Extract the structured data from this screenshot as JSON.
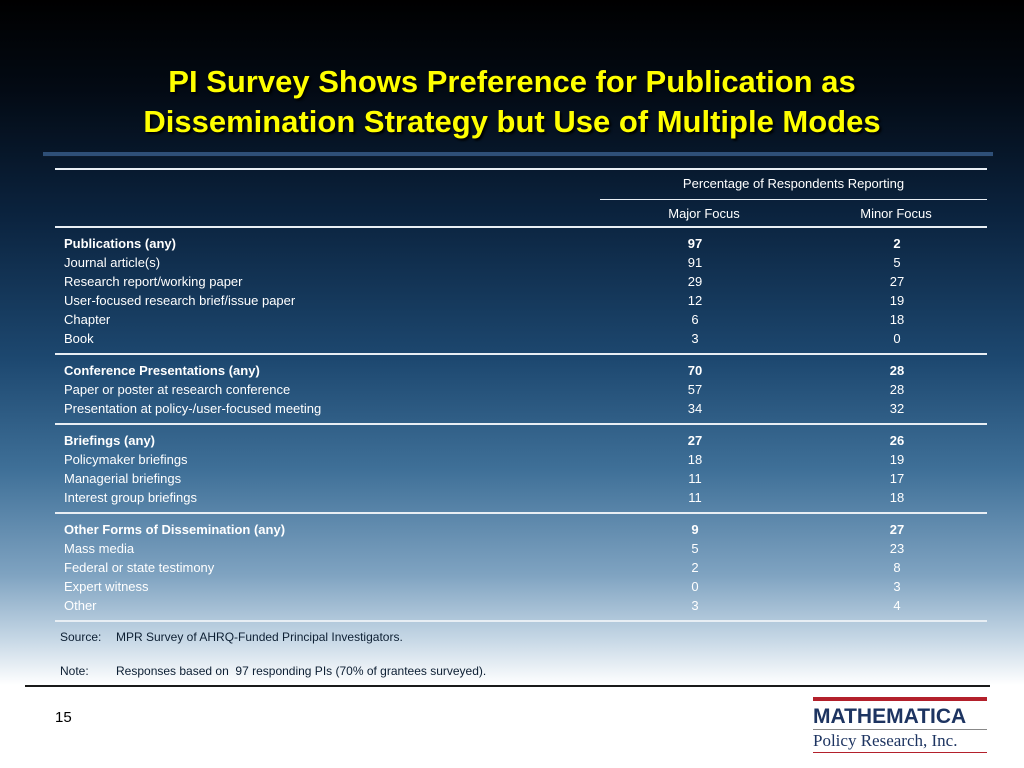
{
  "slide": {
    "title_line1": "PI Survey Shows Preference for Publication as",
    "title_line2": "Dissemination Strategy but Use of Multiple Modes",
    "page_number": "15"
  },
  "table": {
    "spanning_header": "Percentage of Respondents Reporting",
    "col_major": "Major Focus",
    "col_minor": "Minor Focus",
    "groups": [
      {
        "rows": [
          {
            "label": "Publications (any)",
            "major": "97",
            "minor": "2"
          },
          {
            "label": "Journal article(s)",
            "major": "91",
            "minor": "5"
          },
          {
            "label": "Research report/working paper",
            "major": "29",
            "minor": "27"
          },
          {
            "label": "User-focused research brief/issue paper",
            "major": "12",
            "minor": "19"
          },
          {
            "label": "Chapter",
            "major": "6",
            "minor": "18"
          },
          {
            "label": "Book",
            "major": "3",
            "minor": "0"
          }
        ]
      },
      {
        "rows": [
          {
            "label": "Conference Presentations (any)",
            "major": "70",
            "minor": "28"
          },
          {
            "label": "Paper or poster at research conference",
            "major": "57",
            "minor": "28"
          },
          {
            "label": "Presentation at policy-/user-focused meeting",
            "major": "34",
            "minor": "32"
          }
        ]
      },
      {
        "rows": [
          {
            "label": "Briefings (any)",
            "major": "27",
            "minor": "26"
          },
          {
            "label": "Policymaker briefings",
            "major": "18",
            "minor": "19"
          },
          {
            "label": "Managerial briefings",
            "major": "11",
            "minor": "17"
          },
          {
            "label": "Interest group briefings",
            "major": "11",
            "minor": "18"
          }
        ]
      },
      {
        "rows": [
          {
            "label": "Other Forms of Dissemination (any)",
            "major": "9",
            "minor": "27"
          },
          {
            "label": "Mass media",
            "major": "5",
            "minor": "23"
          },
          {
            "label": "Federal or state  testimony",
            "major": "2",
            "minor": "8"
          },
          {
            "label": "Expert witness",
            "major": "0",
            "minor": "3"
          },
          {
            "label": "Other",
            "major": "3",
            "minor": "4"
          }
        ]
      }
    ]
  },
  "notes": {
    "source_tag": "Source:",
    "source_text": "MPR Survey of AHRQ-Funded Principal Investigators.",
    "note_tag": "Note:",
    "note_text": "Responses based on  97 responding PIs (70% of grantees surveyed)."
  },
  "logo": {
    "wordmark": "MATHEMATICA",
    "subtitle": "Policy Research, Inc.",
    "brand_navy": "#1d3461",
    "brand_red": "#b3202b"
  },
  "colors": {
    "title": "#ffff00",
    "table_text": "#ffffff"
  }
}
